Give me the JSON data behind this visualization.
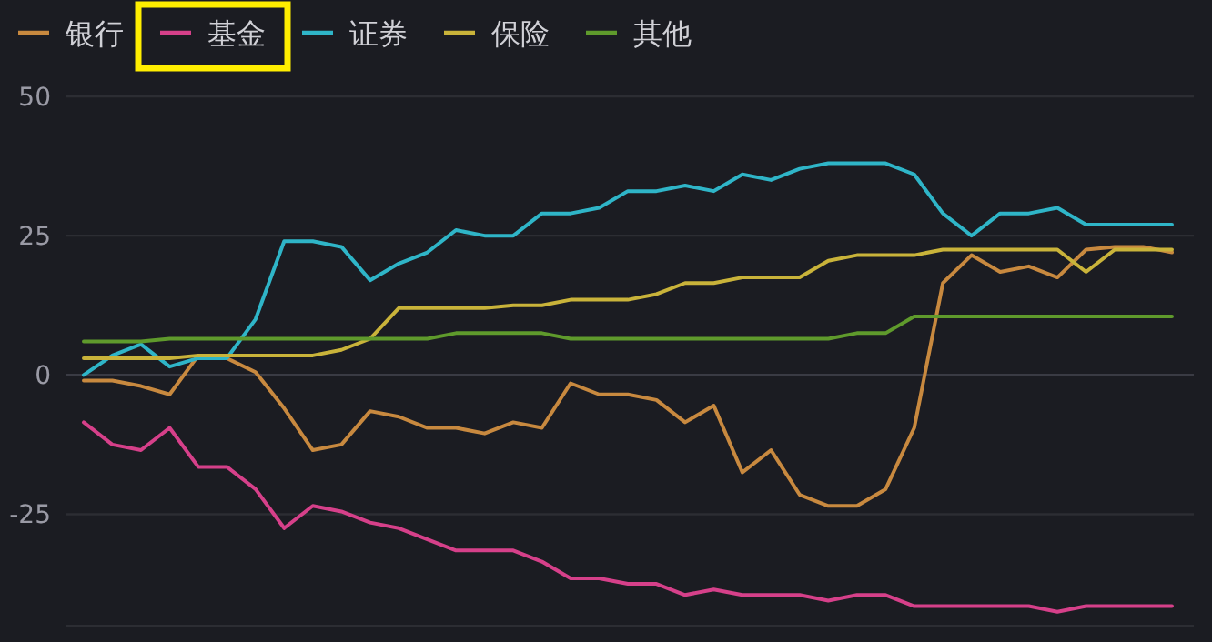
{
  "chart_data": {
    "type": "line",
    "categories": [
      null,
      null,
      null,
      null,
      null,
      null,
      null,
      null,
      null,
      null,
      null,
      null,
      null,
      null,
      null,
      null,
      null,
      null,
      null,
      null,
      null,
      null,
      null,
      null,
      null,
      null,
      null,
      null,
      null,
      null,
      null,
      null,
      null,
      null,
      null,
      null,
      null,
      null,
      null
    ],
    "series": [
      {
        "name": "银行",
        "color": "#c8893f",
        "values": [
          -1,
          -1,
          -2,
          -3.5,
          3.5,
          3,
          0.5,
          -6,
          -13.5,
          -12.5,
          -6.5,
          -7.5,
          -9.5,
          -9.5,
          -10.5,
          -8.5,
          -9.5,
          -1.5,
          -3.5,
          -3.5,
          -4.5,
          -8.5,
          -5.5,
          -17.5,
          -13.5,
          -21.5,
          -23.5,
          -23.5,
          -20.5,
          -9.5,
          16.5,
          21.5,
          18.5,
          19.5,
          17.5,
          22.5,
          23,
          23,
          22
        ]
      },
      {
        "name": "基金",
        "color": "#d6408a",
        "values": [
          -8.5,
          -12.5,
          -13.5,
          -9.5,
          -16.5,
          -16.5,
          -20.5,
          -27.5,
          -23.5,
          -24.5,
          -26.5,
          -27.5,
          -29.5,
          -31.5,
          -31.5,
          -31.5,
          -33.5,
          -36.5,
          -36.5,
          -37.5,
          -37.5,
          -39.5,
          -38.5,
          -39.5,
          -39.5,
          -39.5,
          -40.5,
          -39.5,
          -39.5,
          -41.5,
          -41.5,
          -41.5,
          -41.5,
          -41.5,
          -42.5,
          -41.5,
          -41.5,
          -41.5,
          -41.5
        ]
      },
      {
        "name": "证券",
        "color": "#2fb5c8",
        "values": [
          0,
          3.5,
          5.5,
          1.5,
          3,
          3,
          10,
          24,
          24,
          23,
          17,
          20,
          22,
          26,
          25,
          25,
          29,
          29,
          30,
          33,
          33,
          34,
          33,
          36,
          35,
          37,
          38,
          38,
          38,
          36,
          29,
          25,
          29,
          29,
          30,
          27,
          27,
          27,
          27
        ]
      },
      {
        "name": "保险",
        "color": "#c9b33a",
        "values": [
          3,
          3,
          3,
          3,
          3.5,
          3.5,
          3.5,
          3.5,
          3.5,
          4.5,
          6.5,
          12,
          12,
          12,
          12,
          12.5,
          12.5,
          13.5,
          13.5,
          13.5,
          14.5,
          16.5,
          16.5,
          17.5,
          17.5,
          17.5,
          20.5,
          21.5,
          21.5,
          21.5,
          22.5,
          22.5,
          22.5,
          22.5,
          22.5,
          18.5,
          22.5,
          22.5,
          22.5
        ]
      },
      {
        "name": "其他",
        "color": "#5f9a2c",
        "values": [
          6,
          6,
          6,
          6.5,
          6.5,
          6.5,
          6.5,
          6.5,
          6.5,
          6.5,
          6.5,
          6.5,
          6.5,
          7.5,
          7.5,
          7.5,
          7.5,
          6.5,
          6.5,
          6.5,
          6.5,
          6.5,
          6.5,
          6.5,
          6.5,
          6.5,
          6.5,
          7.5,
          7.5,
          10.5,
          10.5,
          10.5,
          10.5,
          10.5,
          10.5,
          10.5,
          10.5,
          10.5,
          10.5
        ]
      }
    ],
    "ylim": [
      -45,
      50
    ],
    "yticks": [
      50,
      25,
      0,
      -25
    ],
    "grid": "y",
    "legend": "top left",
    "tick_labels": "y",
    "marker": "none",
    "line_style": "solid"
  }
}
